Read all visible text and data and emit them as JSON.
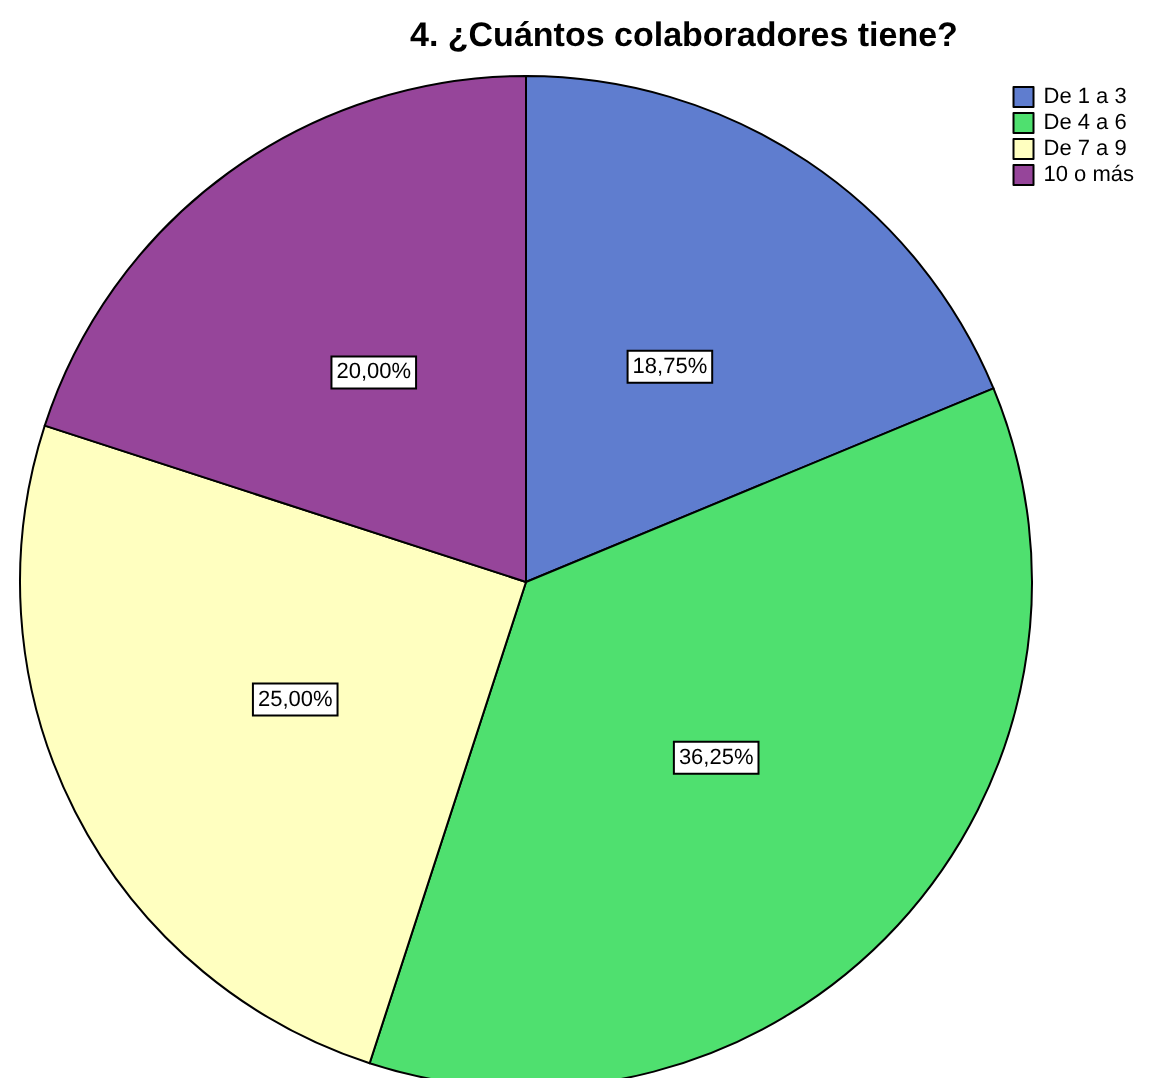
{
  "chart_data": {
    "type": "pie",
    "title": "4. ¿Cuántos colaboradores tiene?",
    "categories": [
      "De 1 a 3",
      "De 4 a 6",
      "De 7 a 9",
      "10 o más"
    ],
    "values": [
      18.75,
      36.25,
      25,
      20
    ],
    "colors": [
      "#5f7dcf",
      "#4fe06f",
      "#ffffc0",
      "#96459a"
    ],
    "value_labels": [
      "18,75%",
      "36,25%",
      "25,00%",
      "20,00%"
    ],
    "legend": "top right"
  }
}
